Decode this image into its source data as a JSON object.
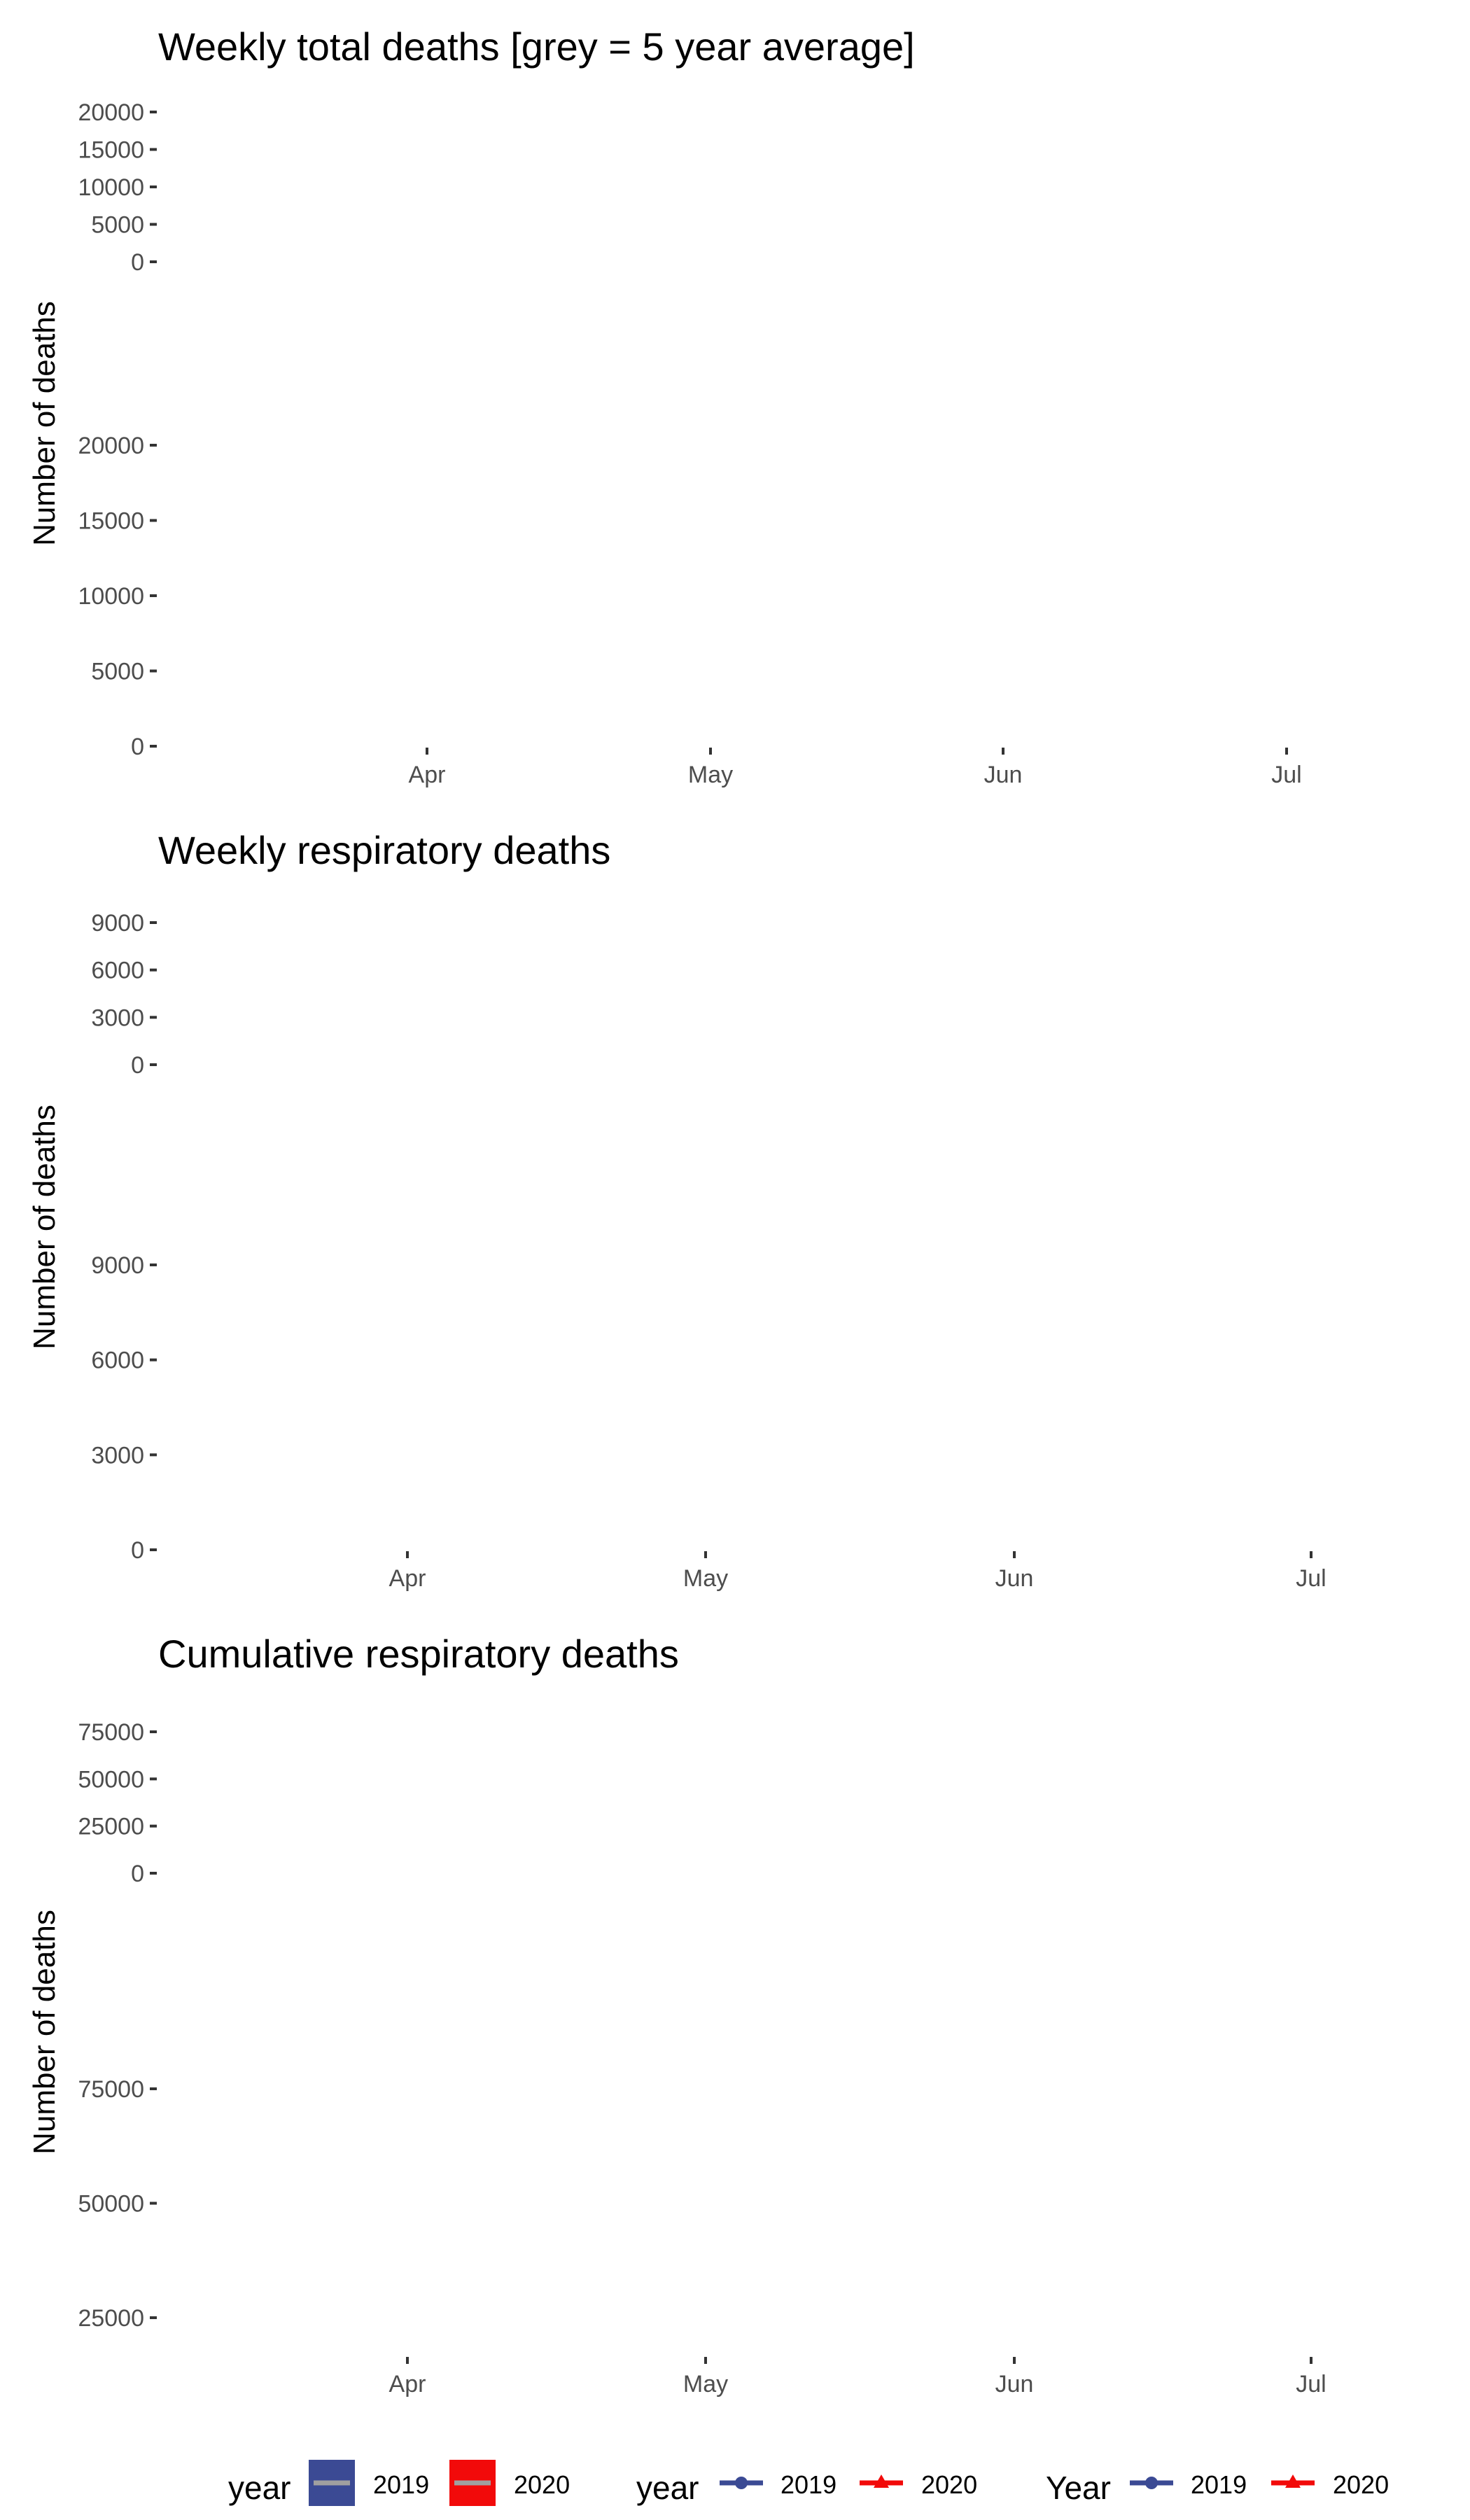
{
  "chart_data": [
    {
      "type": "line",
      "title": "Weekly total deaths  [grey = 5 year average]",
      "ylabel": "Number of deaths",
      "xlabel": "",
      "panels": [
        {
          "yticks": [
            0,
            5000,
            10000,
            15000,
            20000
          ],
          "ylim": [
            0,
            20000
          ]
        },
        {
          "yticks": [
            0,
            5000,
            10000,
            15000,
            20000
          ],
          "ylim": [
            0,
            20000
          ]
        }
      ],
      "xticks": [
        "Apr",
        "May",
        "Jun",
        "Jul"
      ],
      "series": []
    },
    {
      "type": "line",
      "title": "Weekly respiratory deaths",
      "ylabel": "Number of deaths",
      "xlabel": "",
      "panels": [
        {
          "yticks": [
            0,
            3000,
            6000,
            9000
          ],
          "ylim": [
            0,
            9000
          ]
        },
        {
          "yticks": [
            0,
            3000,
            6000,
            9000
          ],
          "ylim": [
            0,
            9000
          ]
        }
      ],
      "xticks": [
        "Apr",
        "May",
        "Jun",
        "Jul"
      ],
      "series": []
    },
    {
      "type": "line",
      "title": "Cumulative respiratory deaths",
      "ylabel": "Number of deaths",
      "xlabel": "",
      "panels": [
        {
          "yticks": [
            0,
            25000,
            50000,
            75000
          ],
          "ylim": [
            0,
            75000
          ]
        },
        {
          "yticks": [
            25000,
            50000,
            75000
          ],
          "ylim": [
            25000,
            75000
          ]
        }
      ],
      "xticks": [
        "Apr",
        "May",
        "Jun",
        "Jul"
      ],
      "series": []
    }
  ],
  "legends": [
    {
      "title": "year",
      "style": "fill",
      "items": [
        {
          "label": "2019",
          "color": "#3b4a94"
        },
        {
          "label": "2020",
          "color": "#f20a0a"
        }
      ],
      "bar_color": "#a0a0a0"
    },
    {
      "title": "year",
      "style": "line-point",
      "items": [
        {
          "label": "2019",
          "color": "#3b4a94",
          "marker": "circle"
        },
        {
          "label": "2020",
          "color": "#f20a0a",
          "marker": "triangle"
        }
      ]
    },
    {
      "title": "Year",
      "style": "line-point",
      "items": [
        {
          "label": "2019",
          "color": "#3b4a94",
          "marker": "circle"
        },
        {
          "label": "2020",
          "color": "#f20a0a",
          "marker": "triangle"
        }
      ]
    }
  ]
}
